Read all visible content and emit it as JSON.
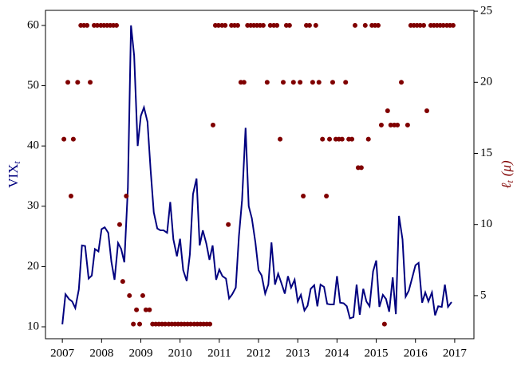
{
  "chart_data": {
    "type": "line",
    "ylabel": "VIX",
    "ylabel_sub": "t",
    "y2label": "ℓ",
    "y2label_sub": "t",
    "y2label_rest": "(μ)",
    "xlim": [
      2006.57,
      2017.49
    ],
    "xticks": [
      2007,
      2008,
      2009,
      2010,
      2011,
      2012,
      2013,
      2014,
      2015,
      2016,
      2017
    ],
    "ylim": [
      8.02,
      62.5
    ],
    "yticks": [
      10,
      20,
      30,
      40,
      50,
      60
    ],
    "y2lim": [
      1.97,
      25.06
    ],
    "y2ticks": [
      5,
      10,
      15,
      20,
      25
    ],
    "series": [
      {
        "type": "line",
        "color": "#00007f",
        "axis": "y",
        "x": [
          2007.0,
          2007.08,
          2007.17,
          2007.25,
          2007.33,
          2007.42,
          2007.5,
          2007.58,
          2007.67,
          2007.75,
          2007.83,
          2007.92,
          2008.0,
          2008.08,
          2008.17,
          2008.25,
          2008.33,
          2008.42,
          2008.5,
          2008.58,
          2008.67,
          2008.75,
          2008.83,
          2008.92,
          2009.0,
          2009.08,
          2009.17,
          2009.25,
          2009.33,
          2009.42,
          2009.5,
          2009.58,
          2009.67,
          2009.75,
          2009.83,
          2009.92,
          2010.0,
          2010.08,
          2010.17,
          2010.25,
          2010.33,
          2010.42,
          2010.5,
          2010.58,
          2010.67,
          2010.75,
          2010.83,
          2010.92,
          2011.0,
          2011.08,
          2011.17,
          2011.25,
          2011.33,
          2011.42,
          2011.5,
          2011.58,
          2011.67,
          2011.75,
          2011.83,
          2011.92,
          2012.0,
          2012.08,
          2012.17,
          2012.25,
          2012.33,
          2012.42,
          2012.5,
          2012.58,
          2012.67,
          2012.75,
          2012.83,
          2012.92,
          2013.0,
          2013.08,
          2013.17,
          2013.25,
          2013.33,
          2013.42,
          2013.5,
          2013.58,
          2013.67,
          2013.75,
          2013.83,
          2013.92,
          2014.0,
          2014.08,
          2014.17,
          2014.25,
          2014.33,
          2014.42,
          2014.5,
          2014.58,
          2014.67,
          2014.75,
          2014.83,
          2014.92,
          2015.0,
          2015.08,
          2015.17,
          2015.25,
          2015.33,
          2015.42,
          2015.5,
          2015.58,
          2015.67,
          2015.75,
          2015.83,
          2015.92,
          2016.0,
          2016.08,
          2016.17,
          2016.25,
          2016.33,
          2016.42,
          2016.5,
          2016.58,
          2016.67,
          2016.75,
          2016.83,
          2016.92
        ],
        "values": [
          10.4,
          15.4,
          14.6,
          14.2,
          13.1,
          16.2,
          23.5,
          23.4,
          18.0,
          18.5,
          22.9,
          22.5,
          26.2,
          26.5,
          25.6,
          20.8,
          17.8,
          23.9,
          22.9,
          20.7,
          33,
          60,
          55,
          40,
          45,
          46.4,
          44,
          36,
          29,
          26.3,
          26,
          26,
          25.6,
          30.7,
          24.5,
          21.7,
          24.6,
          19.4,
          17.6,
          22,
          32,
          34.6,
          23.5,
          26,
          23.8,
          21.1,
          23.5,
          17.8,
          19.5,
          18.4,
          18,
          14.7,
          15.4,
          16.5,
          25,
          31,
          43,
          30,
          28,
          24,
          19.4,
          18.5,
          15.5,
          17,
          24,
          17,
          18.8,
          17.3,
          15.5,
          18.4,
          16.5,
          17.8,
          14.2,
          15.3,
          12.7,
          13.5,
          16.3,
          16.9,
          13.4,
          17,
          16.6,
          13.8,
          13.7,
          13.7,
          18.4,
          14,
          13.9,
          13.4,
          11.4,
          11.6,
          17,
          12,
          16.3,
          14.2,
          13.4,
          19.2,
          21,
          13.3,
          15.3,
          14.6,
          12.5,
          18.2,
          12.1,
          28.4,
          24.5,
          15,
          16,
          18.2,
          20.2,
          20.6,
          14,
          15.7,
          14.2,
          15.7,
          11.9,
          13.4,
          13.3,
          17,
          13.3,
          14.1
        ]
      },
      {
        "type": "scatter",
        "color": "#800000",
        "axis": "y2",
        "x": [
          2007.04,
          2007.14,
          2007.22,
          2007.28,
          2007.39,
          2007.47,
          2007.55,
          2007.63,
          2007.71,
          2007.81,
          2007.89,
          2007.98,
          2008.06,
          2008.14,
          2008.22,
          2008.3,
          2008.38,
          2008.46,
          2008.54,
          2008.63,
          2008.71,
          2008.81,
          2008.89,
          2008.97,
          2009.05,
          2009.13,
          2009.22,
          2009.3,
          2009.38,
          2009.46,
          2009.54,
          2009.62,
          2009.71,
          2009.79,
          2009.87,
          2009.95,
          2010.03,
          2010.11,
          2010.19,
          2010.27,
          2010.36,
          2010.44,
          2010.52,
          2010.6,
          2010.68,
          2010.76,
          2010.84,
          2010.9,
          2010.98,
          2011.07,
          2011.15,
          2011.23,
          2011.31,
          2011.39,
          2011.47,
          2011.55,
          2011.63,
          2011.72,
          2011.8,
          2011.88,
          2011.96,
          2012.04,
          2012.12,
          2012.22,
          2012.3,
          2012.39,
          2012.47,
          2012.55,
          2012.63,
          2012.71,
          2012.79,
          2012.89,
          2013.06,
          2013.14,
          2013.22,
          2013.3,
          2013.38,
          2013.46,
          2013.54,
          2013.63,
          2013.73,
          2013.81,
          2013.89,
          2013.97,
          2014.05,
          2014.13,
          2014.22,
          2014.3,
          2014.38,
          2014.46,
          2014.54,
          2014.62,
          2014.72,
          2014.8,
          2014.89,
          2014.97,
          2015.05,
          2015.13,
          2015.21,
          2015.29,
          2015.37,
          2015.46,
          2015.54,
          2015.64,
          2015.8,
          2015.88,
          2015.96,
          2016.04,
          2016.12,
          2016.21,
          2016.29,
          2016.39,
          2016.47,
          2016.55,
          2016.63,
          2016.71,
          2016.8,
          2016.88,
          2016.96
        ],
        "values": [
          16,
          20,
          12,
          16,
          20,
          24,
          24,
          24,
          20,
          24,
          24,
          24,
          24,
          24,
          24,
          24,
          24,
          10,
          6,
          12,
          5,
          3,
          4,
          3,
          5,
          4,
          4,
          3,
          3,
          3,
          3,
          3,
          3,
          3,
          3,
          3,
          3,
          3,
          3,
          3,
          3,
          3,
          3,
          3,
          3,
          3,
          17,
          24,
          24,
          24,
          24,
          10,
          24,
          24,
          24,
          20,
          20,
          24,
          24,
          24,
          24,
          24,
          24,
          20,
          24,
          24,
          24,
          16,
          20,
          24,
          24,
          20,
          20,
          12,
          24,
          24,
          20,
          24,
          20,
          16,
          12,
          16,
          20,
          16,
          16,
          16,
          20,
          16,
          16,
          24,
          14,
          14,
          24,
          16,
          24,
          24,
          24,
          17,
          3,
          18,
          17,
          17,
          17,
          20,
          17,
          24,
          24,
          24,
          24,
          24,
          18,
          24,
          24,
          24,
          24,
          24,
          24,
          24,
          24
        ]
      }
    ]
  }
}
